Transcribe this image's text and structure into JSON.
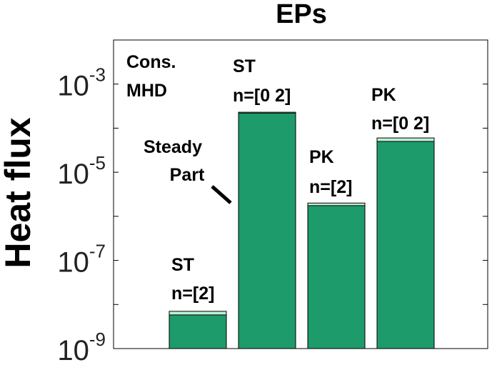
{
  "chart_data": {
    "type": "bar",
    "title": "EPs",
    "ylabel": "Heat flux",
    "xlabel": "",
    "yscale": "log",
    "ylim": [
      1e-09,
      0.01
    ],
    "yticks": [
      {
        "base": "10",
        "exp": "-9"
      },
      {
        "base": "10",
        "exp": "-7"
      },
      {
        "base": "10",
        "exp": "-5"
      },
      {
        "base": "10",
        "exp": "-3"
      }
    ],
    "grid": false,
    "bar_color": "#1e9b6a",
    "cap_color": "#bdf0d6",
    "corner_note": [
      "Cons.",
      "MHD"
    ],
    "steady_note": [
      "Steady",
      "Part"
    ],
    "bars": [
      {
        "label_top": "ST",
        "label_bottom": "n=[2]",
        "total": 7e-09,
        "steady": 5.8e-09
      },
      {
        "label_top": "ST",
        "label_bottom": "n=[0 2]",
        "total": 0.00023,
        "steady": 0.00022
      },
      {
        "label_top": "PK",
        "label_bottom": "n=[2]",
        "total": 2e-06,
        "steady": 1.75e-06
      },
      {
        "label_top": "PK",
        "label_bottom": "n=[0 2]",
        "total": 6e-05,
        "steady": 5e-05
      }
    ]
  }
}
